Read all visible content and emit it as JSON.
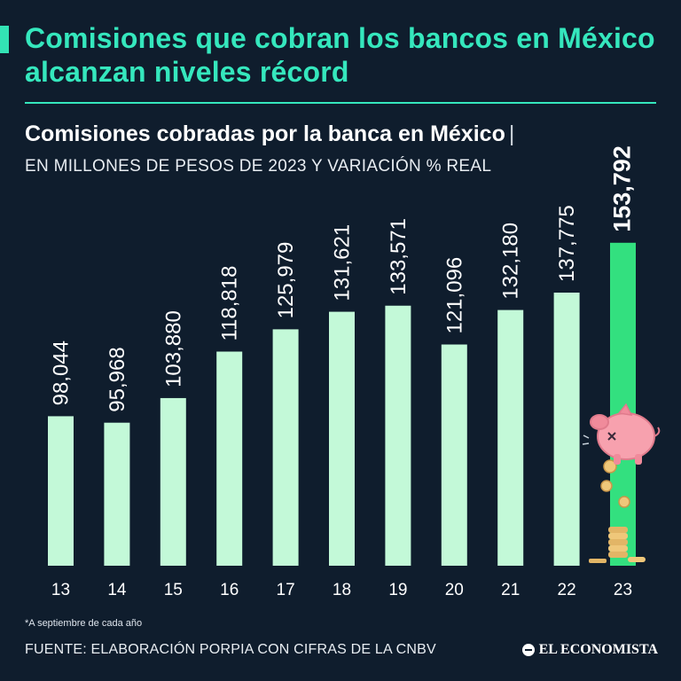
{
  "header": {
    "headline": "Comisiones que cobran los bancos en México alcanzan niveles récord",
    "subtitle": "Comisiones cobradas por la banca en México",
    "subtitle_separator": "|",
    "units": "EN MILLONES DE PESOS DE 2023 Y VARIACIÓN % REAL"
  },
  "footer": {
    "note": "*A septiembre de cada año",
    "source": "FUENTE: ELABORACIÓN PORPIA CON CIFRAS DE LA CNBV",
    "brand": "EL ECONOMISTA"
  },
  "colors": {
    "background": "#0f1d2d",
    "bar": "#c3f9d8",
    "bar_highlight": "#33e07f",
    "accent": "#35e7bd"
  },
  "chart_data": {
    "type": "bar",
    "title": "Comisiones cobradas por la banca en México",
    "xlabel": "",
    "ylabel": "Millones de pesos de 2023",
    "categories": [
      "13",
      "14",
      "15",
      "16",
      "17",
      "18",
      "19",
      "20",
      "21",
      "22",
      "23"
    ],
    "values": [
      98044,
      95968,
      103880,
      118818,
      125979,
      131621,
      133571,
      121096,
      132180,
      137775,
      153792
    ],
    "labels": [
      "98,044",
      "95,968",
      "103,880",
      "118,818",
      "125,979",
      "131,621",
      "133,571",
      "121,096",
      "132,180",
      "137,775",
      "153,792"
    ],
    "highlight_index": 10,
    "ylim": [
      0,
      160000
    ],
    "grid": false,
    "legend": "none"
  }
}
